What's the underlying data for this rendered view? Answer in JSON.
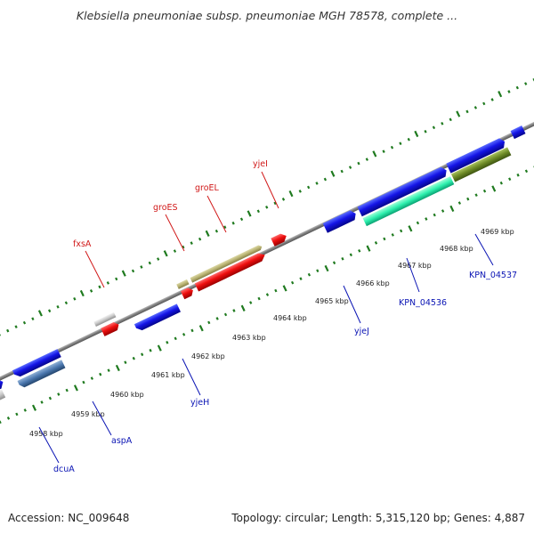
{
  "title": "Klebsiella pneumoniae subsp. pneumoniae MGH 78578, complete ...",
  "footer": {
    "accession": "Accession: NC_009648",
    "summary": "Topology: circular; Length: 5,315,120 bp; Genes: 4,887"
  },
  "colors": {
    "forward_label": "#d11a1a",
    "reverse_label": "#0a14b4",
    "backbone": "#8c8c8c",
    "ticks": "#1f7a1f"
  },
  "ruler": [
    "4958 kbp",
    "4959 kbp",
    "4960 kbp",
    "4961 kbp",
    "4962 kbp",
    "4963 kbp",
    "4964 kbp",
    "4965 kbp",
    "4966 kbp",
    "4967 kbp",
    "4968 kbp",
    "4969 kbp"
  ],
  "gene_labels": {
    "fxsA": "fxsA",
    "groES": "groES",
    "groEL": "groEL",
    "yjeI": "yjeI",
    "dcuA": "dcuA",
    "aspA": "aspA",
    "yjeH": "yjeH",
    "yjeJ": "yjeJ",
    "KPN_04536": "KPN_04536",
    "KPN_04537": "KPN_04537"
  }
}
